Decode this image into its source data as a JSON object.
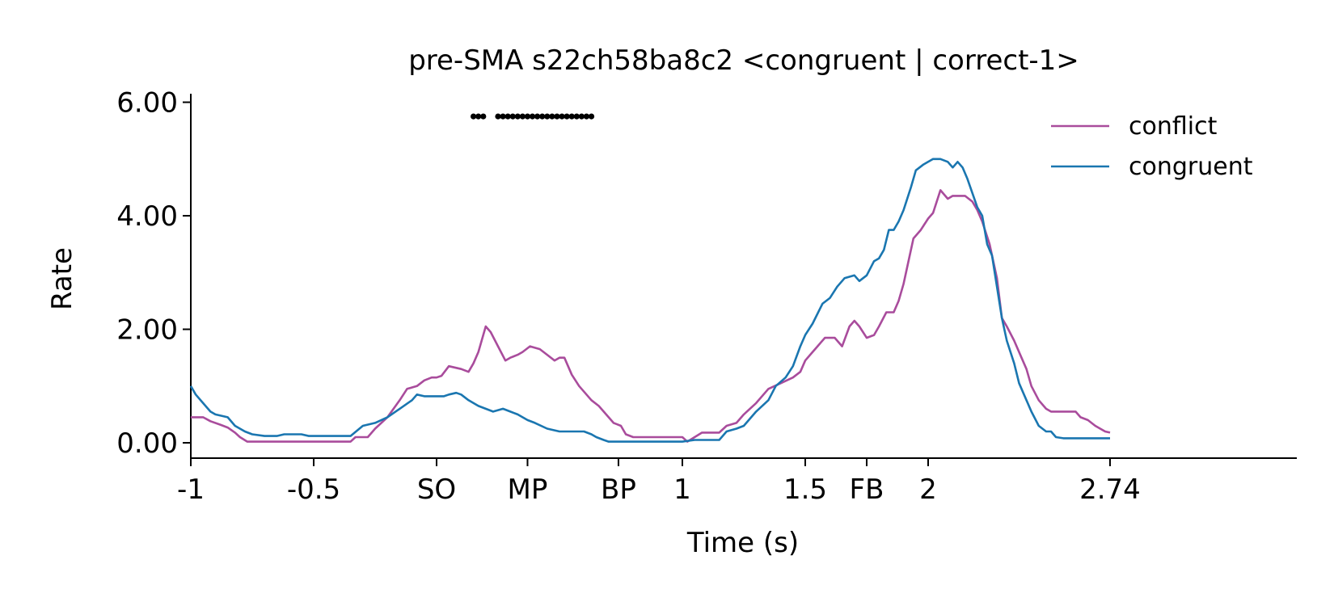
{
  "chart_data": {
    "type": "line",
    "title": "pre-SMA s22ch58ba8c2 <congruent | correct-1>",
    "xlabel": "Time (s)",
    "ylabel": "Rate",
    "xlim": [
      -1,
      3.5
    ],
    "ylim": [
      -0.27,
      6.15
    ],
    "grid": false,
    "legend_position": "top-right",
    "x_ticks": [
      {
        "value": -1,
        "label": "-1"
      },
      {
        "value": -0.5,
        "label": "-0.5"
      },
      {
        "value": 0,
        "label": "SO"
      },
      {
        "value": 0.37,
        "label": "MP"
      },
      {
        "value": 0.74,
        "label": "BP"
      },
      {
        "value": 1,
        "label": "1"
      },
      {
        "value": 1.5,
        "label": "1.5"
      },
      {
        "value": 1.75,
        "label": "FB"
      },
      {
        "value": 2,
        "label": "2"
      },
      {
        "value": 2.74,
        "label": "2.74"
      }
    ],
    "y_ticks": [
      {
        "value": 0,
        "label": "0.00"
      },
      {
        "value": 2,
        "label": "2.00"
      },
      {
        "value": 4,
        "label": "4.00"
      },
      {
        "value": 6,
        "label": "6.00"
      }
    ],
    "series": [
      {
        "name": "conflict",
        "color": "#a94c9c",
        "points": [
          [
            -1.0,
            0.45
          ],
          [
            -0.95,
            0.45
          ],
          [
            -0.92,
            0.38
          ],
          [
            -0.88,
            0.32
          ],
          [
            -0.85,
            0.27
          ],
          [
            -0.82,
            0.18
          ],
          [
            -0.8,
            0.1
          ],
          [
            -0.77,
            0.02
          ],
          [
            -0.7,
            0.02
          ],
          [
            -0.6,
            0.02
          ],
          [
            -0.5,
            0.02
          ],
          [
            -0.4,
            0.02
          ],
          [
            -0.35,
            0.02
          ],
          [
            -0.33,
            0.1
          ],
          [
            -0.28,
            0.1
          ],
          [
            -0.25,
            0.25
          ],
          [
            -0.2,
            0.45
          ],
          [
            -0.15,
            0.75
          ],
          [
            -0.12,
            0.95
          ],
          [
            -0.08,
            1.0
          ],
          [
            -0.05,
            1.1
          ],
          [
            -0.02,
            1.15
          ],
          [
            0.0,
            1.15
          ],
          [
            0.02,
            1.18
          ],
          [
            0.05,
            1.35
          ],
          [
            0.1,
            1.3
          ],
          [
            0.13,
            1.25
          ],
          [
            0.15,
            1.4
          ],
          [
            0.17,
            1.6
          ],
          [
            0.2,
            2.05
          ],
          [
            0.22,
            1.95
          ],
          [
            0.25,
            1.7
          ],
          [
            0.28,
            1.45
          ],
          [
            0.3,
            1.5
          ],
          [
            0.33,
            1.55
          ],
          [
            0.35,
            1.6
          ],
          [
            0.38,
            1.7
          ],
          [
            0.42,
            1.65
          ],
          [
            0.45,
            1.55
          ],
          [
            0.48,
            1.45
          ],
          [
            0.5,
            1.5
          ],
          [
            0.52,
            1.5
          ],
          [
            0.55,
            1.2
          ],
          [
            0.58,
            1.0
          ],
          [
            0.6,
            0.9
          ],
          [
            0.63,
            0.75
          ],
          [
            0.66,
            0.65
          ],
          [
            0.68,
            0.55
          ],
          [
            0.7,
            0.45
          ],
          [
            0.72,
            0.35
          ],
          [
            0.75,
            0.3
          ],
          [
            0.77,
            0.15
          ],
          [
            0.8,
            0.1
          ],
          [
            0.85,
            0.1
          ],
          [
            0.9,
            0.1
          ],
          [
            0.95,
            0.1
          ],
          [
            1.0,
            0.1
          ],
          [
            1.02,
            0.02
          ],
          [
            1.05,
            0.1
          ],
          [
            1.08,
            0.18
          ],
          [
            1.15,
            0.18
          ],
          [
            1.18,
            0.3
          ],
          [
            1.22,
            0.35
          ],
          [
            1.25,
            0.5
          ],
          [
            1.3,
            0.7
          ],
          [
            1.35,
            0.95
          ],
          [
            1.4,
            1.05
          ],
          [
            1.45,
            1.15
          ],
          [
            1.48,
            1.25
          ],
          [
            1.5,
            1.45
          ],
          [
            1.53,
            1.6
          ],
          [
            1.55,
            1.7
          ],
          [
            1.58,
            1.85
          ],
          [
            1.62,
            1.85
          ],
          [
            1.65,
            1.7
          ],
          [
            1.68,
            2.05
          ],
          [
            1.7,
            2.15
          ],
          [
            1.72,
            2.05
          ],
          [
            1.75,
            1.85
          ],
          [
            1.78,
            1.9
          ],
          [
            1.8,
            2.05
          ],
          [
            1.83,
            2.3
          ],
          [
            1.86,
            2.3
          ],
          [
            1.88,
            2.5
          ],
          [
            1.9,
            2.8
          ],
          [
            1.92,
            3.2
          ],
          [
            1.94,
            3.6
          ],
          [
            1.97,
            3.75
          ],
          [
            2.0,
            3.95
          ],
          [
            2.02,
            4.05
          ],
          [
            2.05,
            4.45
          ],
          [
            2.08,
            4.3
          ],
          [
            2.1,
            4.35
          ],
          [
            2.15,
            4.35
          ],
          [
            2.18,
            4.25
          ],
          [
            2.2,
            4.1
          ],
          [
            2.22,
            3.9
          ],
          [
            2.25,
            3.5
          ],
          [
            2.28,
            2.9
          ],
          [
            2.3,
            2.2
          ],
          [
            2.32,
            2.05
          ],
          [
            2.35,
            1.8
          ],
          [
            2.38,
            1.5
          ],
          [
            2.4,
            1.3
          ],
          [
            2.42,
            1.0
          ],
          [
            2.45,
            0.75
          ],
          [
            2.48,
            0.6
          ],
          [
            2.5,
            0.55
          ],
          [
            2.55,
            0.55
          ],
          [
            2.6,
            0.55
          ],
          [
            2.62,
            0.45
          ],
          [
            2.65,
            0.4
          ],
          [
            2.68,
            0.3
          ],
          [
            2.7,
            0.25
          ],
          [
            2.72,
            0.2
          ],
          [
            2.74,
            0.18
          ]
        ]
      },
      {
        "name": "congruent",
        "color": "#1a76b0",
        "points": [
          [
            -1.0,
            1.0
          ],
          [
            -0.98,
            0.85
          ],
          [
            -0.95,
            0.7
          ],
          [
            -0.92,
            0.55
          ],
          [
            -0.9,
            0.5
          ],
          [
            -0.85,
            0.45
          ],
          [
            -0.82,
            0.3
          ],
          [
            -0.78,
            0.2
          ],
          [
            -0.75,
            0.15
          ],
          [
            -0.7,
            0.12
          ],
          [
            -0.65,
            0.12
          ],
          [
            -0.62,
            0.15
          ],
          [
            -0.55,
            0.15
          ],
          [
            -0.52,
            0.12
          ],
          [
            -0.45,
            0.12
          ],
          [
            -0.4,
            0.12
          ],
          [
            -0.35,
            0.12
          ],
          [
            -0.3,
            0.3
          ],
          [
            -0.25,
            0.35
          ],
          [
            -0.2,
            0.45
          ],
          [
            -0.15,
            0.6
          ],
          [
            -0.1,
            0.75
          ],
          [
            -0.08,
            0.85
          ],
          [
            -0.05,
            0.82
          ],
          [
            0.0,
            0.82
          ],
          [
            0.03,
            0.82
          ],
          [
            0.05,
            0.85
          ],
          [
            0.08,
            0.88
          ],
          [
            0.1,
            0.85
          ],
          [
            0.13,
            0.75
          ],
          [
            0.17,
            0.65
          ],
          [
            0.2,
            0.6
          ],
          [
            0.23,
            0.55
          ],
          [
            0.27,
            0.6
          ],
          [
            0.3,
            0.55
          ],
          [
            0.33,
            0.5
          ],
          [
            0.37,
            0.4
          ],
          [
            0.4,
            0.35
          ],
          [
            0.45,
            0.25
          ],
          [
            0.5,
            0.2
          ],
          [
            0.55,
            0.2
          ],
          [
            0.6,
            0.2
          ],
          [
            0.63,
            0.15
          ],
          [
            0.65,
            0.1
          ],
          [
            0.68,
            0.05
          ],
          [
            0.7,
            0.02
          ],
          [
            0.75,
            0.02
          ],
          [
            0.8,
            0.02
          ],
          [
            0.9,
            0.02
          ],
          [
            1.0,
            0.02
          ],
          [
            1.05,
            0.05
          ],
          [
            1.1,
            0.05
          ],
          [
            1.15,
            0.05
          ],
          [
            1.18,
            0.2
          ],
          [
            1.22,
            0.25
          ],
          [
            1.25,
            0.3
          ],
          [
            1.3,
            0.55
          ],
          [
            1.35,
            0.75
          ],
          [
            1.38,
            1.0
          ],
          [
            1.42,
            1.15
          ],
          [
            1.45,
            1.35
          ],
          [
            1.48,
            1.7
          ],
          [
            1.5,
            1.9
          ],
          [
            1.53,
            2.1
          ],
          [
            1.57,
            2.45
          ],
          [
            1.6,
            2.55
          ],
          [
            1.63,
            2.75
          ],
          [
            1.66,
            2.9
          ],
          [
            1.7,
            2.95
          ],
          [
            1.72,
            2.85
          ],
          [
            1.75,
            2.95
          ],
          [
            1.78,
            3.2
          ],
          [
            1.8,
            3.25
          ],
          [
            1.82,
            3.4
          ],
          [
            1.84,
            3.75
          ],
          [
            1.86,
            3.75
          ],
          [
            1.88,
            3.9
          ],
          [
            1.9,
            4.1
          ],
          [
            1.93,
            4.5
          ],
          [
            1.95,
            4.8
          ],
          [
            1.98,
            4.9
          ],
          [
            2.0,
            4.95
          ],
          [
            2.02,
            5.0
          ],
          [
            2.05,
            5.0
          ],
          [
            2.08,
            4.95
          ],
          [
            2.1,
            4.85
          ],
          [
            2.12,
            4.95
          ],
          [
            2.14,
            4.85
          ],
          [
            2.16,
            4.65
          ],
          [
            2.18,
            4.4
          ],
          [
            2.2,
            4.15
          ],
          [
            2.22,
            4.0
          ],
          [
            2.24,
            3.5
          ],
          [
            2.26,
            3.3
          ],
          [
            2.28,
            2.75
          ],
          [
            2.3,
            2.2
          ],
          [
            2.32,
            1.8
          ],
          [
            2.35,
            1.4
          ],
          [
            2.37,
            1.05
          ],
          [
            2.4,
            0.75
          ],
          [
            2.42,
            0.55
          ],
          [
            2.45,
            0.3
          ],
          [
            2.48,
            0.2
          ],
          [
            2.5,
            0.2
          ],
          [
            2.52,
            0.1
          ],
          [
            2.55,
            0.08
          ],
          [
            2.6,
            0.08
          ],
          [
            2.65,
            0.08
          ],
          [
            2.7,
            0.08
          ],
          [
            2.74,
            0.08
          ]
        ]
      }
    ],
    "significance_markers": {
      "y": 5.75,
      "x": [
        0.15,
        0.17,
        0.19,
        0.25,
        0.27,
        0.29,
        0.31,
        0.33,
        0.35,
        0.37,
        0.39,
        0.41,
        0.43,
        0.45,
        0.47,
        0.49,
        0.51,
        0.53,
        0.55,
        0.57,
        0.59,
        0.61,
        0.63
      ]
    }
  }
}
